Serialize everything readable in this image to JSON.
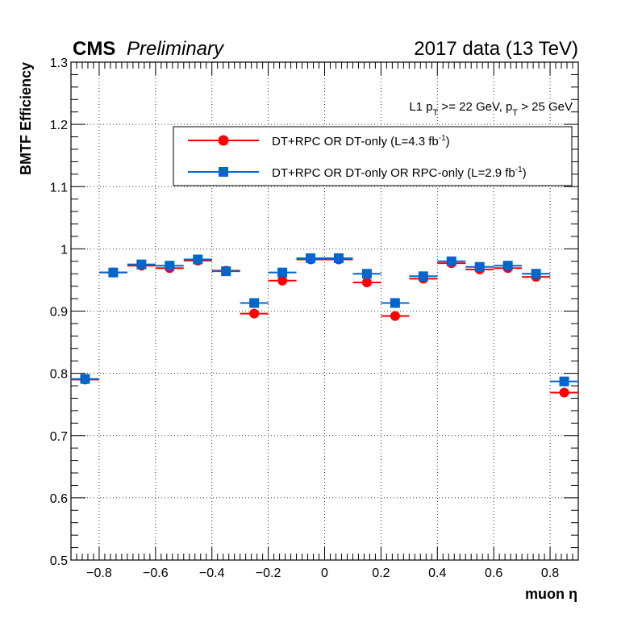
{
  "header": {
    "experiment": "CMS",
    "status": "Preliminary",
    "dataset": "2017 data (13 TeV)"
  },
  "cut_label": {
    "prefix": "L1 p",
    "sub1": "T",
    "middle": " >= 22 GeV, p",
    "sub2": "T",
    "suffix": " > 25 GeV"
  },
  "legend": [
    {
      "text": "DT+RPC OR DT-only (L=4.3 fb",
      "sup": "-1",
      "close": ")",
      "marker": "circle",
      "color": "#ff0000"
    },
    {
      "text": "DT+RPC OR DT-only OR RPC-only (L=2.9 fb",
      "sup": "-1",
      "close": ")",
      "marker": "square",
      "color": "#0066cc"
    }
  ],
  "chart_data": {
    "type": "scatter",
    "title": "",
    "xlabel": "muon η",
    "ylabel": "BMTF Efficiency",
    "xlim": [
      -0.9,
      0.9
    ],
    "ylim": [
      0.5,
      1.3
    ],
    "grid": true,
    "x_ticks": [
      "−0.8",
      "−0.6",
      "−0.4",
      "−0.2",
      "0",
      "0.2",
      "0.4",
      "0.6",
      "0.8"
    ],
    "x_tick_values": [
      -0.8,
      -0.6,
      -0.4,
      -0.2,
      0,
      0.2,
      0.4,
      0.6,
      0.8
    ],
    "y_ticks": [
      "0.5",
      "0.6",
      "0.7",
      "0.8",
      "0.9",
      "1",
      "1.1",
      "1.2",
      "1.3"
    ],
    "y_tick_values": [
      0.5,
      0.6,
      0.7,
      0.8,
      0.9,
      1.0,
      1.1,
      1.2,
      1.3
    ],
    "x_bin_half_width": 0.05,
    "series": [
      {
        "name": "DT+RPC OR DT-only (L=4.3 fb-1)",
        "marker": "circle",
        "color": "#ff0000",
        "x": [
          -0.85,
          -0.75,
          -0.65,
          -0.55,
          -0.45,
          -0.35,
          -0.25,
          -0.15,
          -0.05,
          0.05,
          0.15,
          0.25,
          0.35,
          0.45,
          0.55,
          0.65,
          0.75,
          0.85
        ],
        "values": [
          0.79,
          0.962,
          0.973,
          0.969,
          0.981,
          0.965,
          0.896,
          0.949,
          0.983,
          0.983,
          0.946,
          0.892,
          0.952,
          0.977,
          0.967,
          0.969,
          0.955,
          0.769
        ]
      },
      {
        "name": "DT+RPC OR DT-only OR RPC-only (L=2.9 fb-1)",
        "marker": "square",
        "color": "#0066cc",
        "x": [
          -0.85,
          -0.75,
          -0.65,
          -0.55,
          -0.45,
          -0.35,
          -0.25,
          -0.15,
          -0.05,
          0.05,
          0.15,
          0.25,
          0.35,
          0.45,
          0.55,
          0.65,
          0.75,
          0.85
        ],
        "values": [
          0.791,
          0.962,
          0.975,
          0.973,
          0.983,
          0.964,
          0.913,
          0.962,
          0.985,
          0.985,
          0.96,
          0.913,
          0.956,
          0.98,
          0.971,
          0.973,
          0.96,
          0.787
        ]
      }
    ]
  }
}
